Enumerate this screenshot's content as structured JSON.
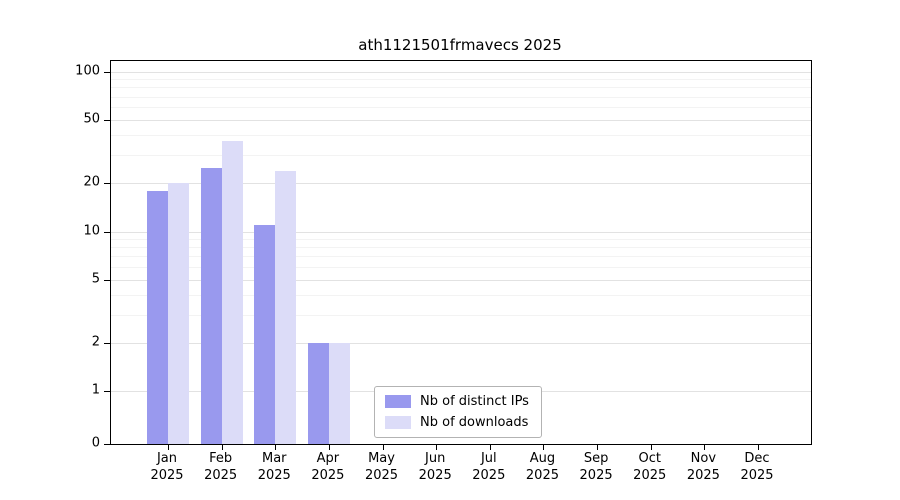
{
  "chart_data": {
    "type": "bar",
    "title": "ath1121501frmavecs 2025",
    "categories": [
      "Jan",
      "Feb",
      "Mar",
      "Apr",
      "May",
      "Jun",
      "Jul",
      "Aug",
      "Sep",
      "Oct",
      "Nov",
      "Dec"
    ],
    "year_label": "2025",
    "yscale": "log",
    "yticks": [
      0,
      1,
      2,
      5,
      10,
      20,
      50,
      100
    ],
    "ylim": [
      0,
      100
    ],
    "grid": true,
    "legend_position": "bottom-center-inside",
    "series": [
      {
        "name": "Nb of distinct IPs",
        "color": "#9999ee",
        "values": [
          18,
          25,
          11,
          2,
          0,
          0,
          0,
          0,
          0,
          0,
          0,
          0
        ]
      },
      {
        "name": "Nb of downloads",
        "color": "#dcdcf8",
        "values": [
          20,
          37,
          24,
          2,
          0,
          0,
          0,
          0,
          0,
          0,
          0,
          0
        ]
      }
    ]
  }
}
